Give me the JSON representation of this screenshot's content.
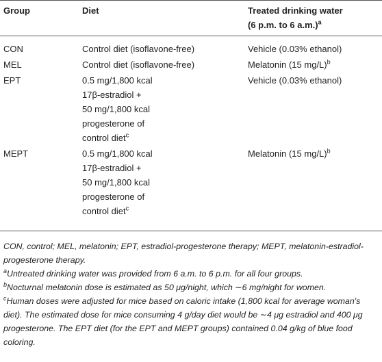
{
  "table": {
    "header": [
      {
        "lines": [
          "Group"
        ]
      },
      {
        "lines": [
          "Diet"
        ]
      },
      {
        "lines": [
          "Treated drinking water",
          "(6 p.m. to 6 a.m.)"
        ],
        "sup": "a"
      }
    ],
    "rows": [
      [
        {
          "lines": [
            "CON"
          ]
        },
        {
          "lines": [
            "Control diet (isoflavone-free)"
          ]
        },
        {
          "lines": [
            "Vehicle (0.03% ethanol)"
          ]
        }
      ],
      [
        {
          "lines": [
            "MEL"
          ]
        },
        {
          "lines": [
            "Control diet (isoflavone-free)"
          ]
        },
        {
          "lines": [
            "Melatonin (15 mg/L)"
          ],
          "sup": "b"
        }
      ],
      [
        {
          "lines": [
            "EPT"
          ]
        },
        {
          "lines": [
            "0.5 mg/1,800 kcal",
            "17β-estradiol +",
            "50 mg/1,800 kcal",
            "progesterone of",
            "control diet"
          ],
          "sup": "c"
        },
        {
          "lines": [
            "Vehicle (0.03% ethanol)"
          ]
        }
      ],
      [
        {
          "lines": [
            "MEPT"
          ]
        },
        {
          "lines": [
            "0.5 mg/1,800 kcal",
            "17β-estradiol +",
            "50 mg/1,800 kcal",
            "progesterone of",
            "control diet"
          ],
          "sup": "c"
        },
        {
          "lines": [
            "Melatonin (15 mg/L)"
          ],
          "sup": "b"
        }
      ]
    ]
  },
  "notes": [
    {
      "text": "CON, control; MEL, melatonin; EPT, estradiol-progesterone therapy; MEPT, melatonin-estradiol-progesterone therapy."
    },
    {
      "sup": "a",
      "text": "Untreated drinking water was provided from 6 a.m. to 6 p.m. for all four groups."
    },
    {
      "sup": "b",
      "text": "Nocturnal melatonin dose is estimated as 50 μg/night, which ∼6 mg/night for women."
    },
    {
      "sup": "c",
      "text": "Human doses were adjusted for mice based on caloric intake (1,800 kcal for average woman's diet). The estimated dose for mice consuming 4 g/day diet would be ∼4 μg estradiol and 400 μg progesterone. The EPT diet (for the EPT and MEPT groups) contained 0.04 g/kg of blue food coloring."
    }
  ]
}
